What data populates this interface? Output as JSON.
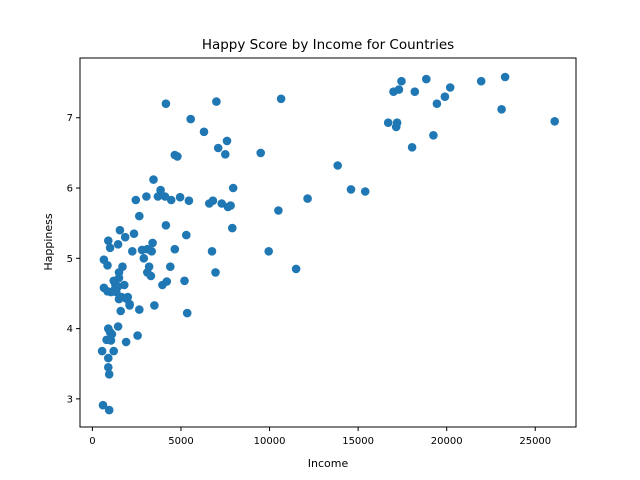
{
  "chart_data": {
    "type": "scatter",
    "title": "Happy Score by Income for Countries",
    "xlabel": "Income",
    "ylabel": "Happiness",
    "xlim": [
      -700,
      27300
    ],
    "ylim": [
      2.6,
      7.85
    ],
    "xticks": [
      0,
      5000,
      10000,
      15000,
      20000,
      25000
    ],
    "yticks": [
      3,
      4,
      5,
      6,
      7
    ],
    "grid": false,
    "marker_color": "#1f77b4",
    "series": [
      {
        "points": [
          [
            600,
            2.91
          ],
          [
            950,
            2.84
          ],
          [
            950,
            3.35
          ],
          [
            900,
            3.45
          ],
          [
            900,
            3.58
          ],
          [
            1200,
            3.68
          ],
          [
            550,
            3.68
          ],
          [
            800,
            3.84
          ],
          [
            1050,
            3.83
          ],
          [
            1000,
            3.95
          ],
          [
            1100,
            3.92
          ],
          [
            900,
            4.0
          ],
          [
            1450,
            4.03
          ],
          [
            1900,
            3.81
          ],
          [
            2550,
            3.9
          ],
          [
            1600,
            4.25
          ],
          [
            2100,
            4.35
          ],
          [
            1500,
            4.42
          ],
          [
            1900,
            4.43
          ],
          [
            1250,
            4.55
          ],
          [
            650,
            4.58
          ],
          [
            850,
            4.53
          ],
          [
            1050,
            4.52
          ],
          [
            1300,
            4.62
          ],
          [
            1500,
            4.72
          ],
          [
            1500,
            4.8
          ],
          [
            1800,
            4.62
          ],
          [
            2100,
            4.33
          ],
          [
            2000,
            4.45
          ],
          [
            1650,
            4.45
          ],
          [
            1450,
            4.6
          ],
          [
            1700,
            4.88
          ],
          [
            1350,
            4.52
          ],
          [
            1200,
            4.68
          ],
          [
            650,
            4.98
          ],
          [
            850,
            4.9
          ],
          [
            900,
            5.25
          ],
          [
            1000,
            5.15
          ],
          [
            1450,
            5.2
          ],
          [
            1550,
            5.4
          ],
          [
            1850,
            5.3
          ],
          [
            2250,
            5.1
          ],
          [
            2350,
            5.35
          ],
          [
            2650,
            5.6
          ],
          [
            2450,
            5.83
          ],
          [
            2650,
            4.27
          ],
          [
            2800,
            5.12
          ],
          [
            2900,
            5.0
          ],
          [
            3100,
            5.13
          ],
          [
            3100,
            4.8
          ],
          [
            3200,
            4.88
          ],
          [
            3300,
            4.75
          ],
          [
            3350,
            5.1
          ],
          [
            3400,
            5.22
          ],
          [
            3500,
            4.33
          ],
          [
            3050,
            5.88
          ],
          [
            3450,
            6.12
          ],
          [
            3700,
            5.88
          ],
          [
            3850,
            5.97
          ],
          [
            3950,
            4.62
          ],
          [
            4100,
            5.88
          ],
          [
            4150,
            5.47
          ],
          [
            4200,
            4.67
          ],
          [
            4400,
            4.88
          ],
          [
            4450,
            5.83
          ],
          [
            4650,
            6.47
          ],
          [
            4800,
            6.45
          ],
          [
            4650,
            5.13
          ],
          [
            4950,
            5.87
          ],
          [
            5200,
            4.68
          ],
          [
            5300,
            5.33
          ],
          [
            5350,
            4.22
          ],
          [
            5450,
            5.82
          ],
          [
            5550,
            6.98
          ],
          [
            4150,
            7.2
          ],
          [
            6300,
            6.8
          ],
          [
            6600,
            5.78
          ],
          [
            6800,
            5.82
          ],
          [
            6750,
            5.1
          ],
          [
            6950,
            4.8
          ],
          [
            7000,
            7.23
          ],
          [
            7100,
            6.57
          ],
          [
            7300,
            5.78
          ],
          [
            7500,
            6.48
          ],
          [
            7650,
            5.73
          ],
          [
            7600,
            6.67
          ],
          [
            7800,
            5.75
          ],
          [
            7900,
            5.43
          ],
          [
            7950,
            6.0
          ],
          [
            9500,
            6.5
          ],
          [
            9950,
            5.1
          ],
          [
            10500,
            5.68
          ],
          [
            10650,
            7.27
          ],
          [
            11500,
            4.85
          ],
          [
            12150,
            5.85
          ],
          [
            13850,
            6.32
          ],
          [
            14600,
            5.98
          ],
          [
            15400,
            5.95
          ],
          [
            16700,
            6.93
          ],
          [
            17000,
            7.37
          ],
          [
            17200,
            6.93
          ],
          [
            17150,
            6.87
          ],
          [
            17300,
            7.4
          ],
          [
            17450,
            7.52
          ],
          [
            18050,
            6.58
          ],
          [
            18200,
            7.37
          ],
          [
            18850,
            7.55
          ],
          [
            19250,
            6.75
          ],
          [
            19450,
            7.2
          ],
          [
            19900,
            7.3
          ],
          [
            20200,
            7.43
          ],
          [
            21950,
            7.52
          ],
          [
            23100,
            7.12
          ],
          [
            23300,
            7.58
          ],
          [
            26100,
            6.95
          ]
        ]
      }
    ]
  }
}
